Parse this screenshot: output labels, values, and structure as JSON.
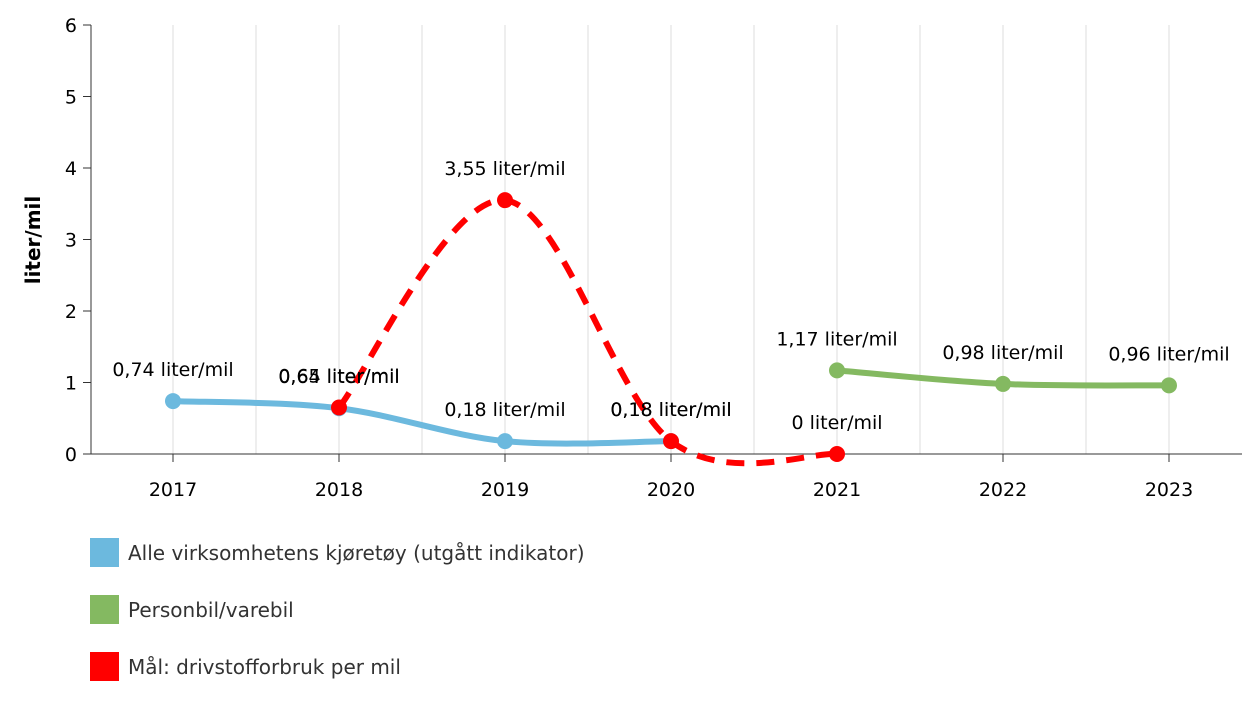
{
  "chart_data": {
    "type": "line",
    "title": "",
    "xlabel": "",
    "ylabel": "liter/mil",
    "categories": [
      "2017",
      "2018",
      "2019",
      "2020",
      "2021",
      "2022",
      "2023"
    ],
    "ylim": [
      0,
      6
    ],
    "yticks": [
      "0",
      "1",
      "2",
      "3",
      "4",
      "5",
      "6"
    ],
    "grid": "vertical",
    "legend_position": "bottom-left",
    "series": [
      {
        "name": "Alle virksomhetens kjøretøy (utgått indikator)",
        "color": "#6cb9de",
        "dashed": false,
        "points": [
          {
            "x": "2017",
            "y": 0.74,
            "label": "0,74 liter/mil"
          },
          {
            "x": "2018",
            "y": 0.64,
            "label": "0,64 liter/mil"
          },
          {
            "x": "2019",
            "y": 0.18,
            "label": "0,18 liter/mil"
          },
          {
            "x": "2020",
            "y": 0.18,
            "label": "0,18 liter/mil"
          }
        ]
      },
      {
        "name": "Personbil/varebil",
        "color": "#84b961",
        "dashed": false,
        "points": [
          {
            "x": "2021",
            "y": 1.17,
            "label": "1,17 liter/mil"
          },
          {
            "x": "2022",
            "y": 0.98,
            "label": "0,98 liter/mil"
          },
          {
            "x": "2023",
            "y": 0.96,
            "label": "0,96 liter/mil"
          }
        ]
      },
      {
        "name": "Mål: drivstofforbruk per mil",
        "color": "#ff0000",
        "dashed": true,
        "points": [
          {
            "x": "2018",
            "y": 0.65,
            "label": "0,65 liter/mil"
          },
          {
            "x": "2019",
            "y": 3.55,
            "label": "3,55 liter/mil"
          },
          {
            "x": "2020",
            "y": 0.18,
            "label": "0,18 liter/mil"
          },
          {
            "x": "2021",
            "y": 0,
            "label": "0 liter/mil"
          }
        ]
      }
    ]
  }
}
